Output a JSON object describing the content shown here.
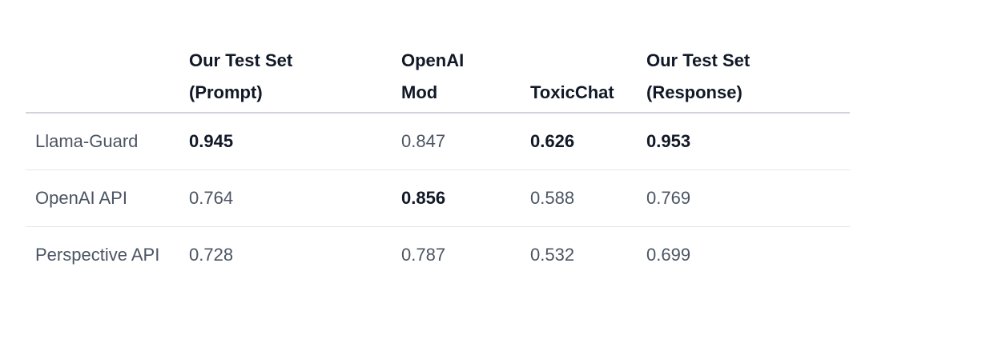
{
  "table": {
    "columns": [
      {
        "line1": "",
        "line2": ""
      },
      {
        "line1": "Our Test Set",
        "line2": "(Prompt)"
      },
      {
        "line1": "OpenAI",
        "line2": "Mod"
      },
      {
        "line1": "",
        "line2": "ToxicChat"
      },
      {
        "line1": "Our Test Set",
        "line2": "(Response)"
      }
    ],
    "rows": [
      {
        "model": "Llama-Guard",
        "values": [
          "0.945",
          "0.847",
          "0.626",
          "0.953"
        ],
        "bold": [
          true,
          false,
          true,
          true
        ]
      },
      {
        "model": "OpenAI API",
        "values": [
          "0.764",
          "0.856",
          "0.588",
          "0.769"
        ],
        "bold": [
          false,
          true,
          false,
          false
        ]
      },
      {
        "model": "Perspective API",
        "values": [
          "0.728",
          "0.787",
          "0.532",
          "0.699"
        ],
        "bold": [
          false,
          false,
          false,
          false
        ]
      }
    ]
  }
}
